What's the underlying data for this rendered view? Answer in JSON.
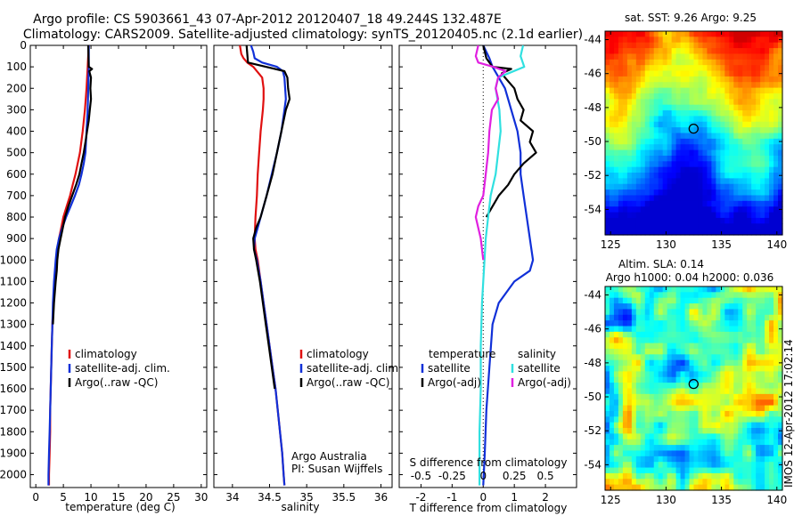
{
  "header": {
    "title_line1": "Argo profile: CS 5903661_43 07-Apr-2012 20120407_18 49.244S 132.487E",
    "title_line2": "Climatology: CARS2009. Satellite-adjusted climatology: synTS_20120405.nc (2.1d earlier)"
  },
  "colors": {
    "climatology": "#e01010",
    "satellite": "#1030d8",
    "argo": "#000000",
    "sat_salinity": "#30e0e0",
    "argo_salinity": "#e020e0"
  },
  "chart_data": [
    {
      "type": "line",
      "panel": "temperature",
      "xlabel": "temperature (deg C)",
      "ylabel": "",
      "xlim": [
        -1,
        31
      ],
      "ylim": [
        2060,
        0
      ],
      "xticks": [
        0,
        5,
        10,
        15,
        20,
        25,
        30
      ],
      "yticks": [
        0,
        100,
        200,
        300,
        400,
        500,
        600,
        700,
        800,
        900,
        1000,
        1100,
        1200,
        1300,
        1400,
        1500,
        1600,
        1700,
        1800,
        1900,
        2000
      ],
      "legend": [
        "climatology",
        "satellite-adj. clim.",
        "Argo(..raw -QC)"
      ],
      "legend_position": "lower-right",
      "series": [
        {
          "name": "climatology",
          "color": "#e01010",
          "depth": [
            0,
            100,
            200,
            300,
            400,
            500,
            550,
            600,
            650,
            700,
            750,
            800,
            850,
            900,
            950,
            1000,
            1100,
            1200,
            1300,
            1400,
            1500,
            1600,
            1700,
            1800,
            1900,
            2000,
            2050
          ],
          "values": [
            9.6,
            9.4,
            9.2,
            8.9,
            8.5,
            8.0,
            7.6,
            7.2,
            6.7,
            6.2,
            5.6,
            5.0,
            4.6,
            4.2,
            3.9,
            3.7,
            3.4,
            3.2,
            3.0,
            2.9,
            2.8,
            2.7,
            2.6,
            2.6,
            2.5,
            2.4,
            2.4
          ]
        },
        {
          "name": "satellite-adj. clim.",
          "color": "#1030d8",
          "depth": [
            0,
            100,
            200,
            300,
            400,
            500,
            550,
            600,
            650,
            700,
            750,
            800,
            850,
            900,
            950,
            1000,
            1100,
            1200,
            1300,
            1400,
            1500,
            1600,
            1700,
            1800,
            1900,
            2000,
            2050
          ],
          "values": [
            9.6,
            9.6,
            9.5,
            9.4,
            9.2,
            9.0,
            8.7,
            8.3,
            7.8,
            7.1,
            6.3,
            5.5,
            4.8,
            4.2,
            3.8,
            3.6,
            3.3,
            3.1,
            3.0,
            2.9,
            2.8,
            2.7,
            2.6,
            2.5,
            2.4,
            2.3,
            2.3
          ]
        },
        {
          "name": "Argo(..raw -QC)",
          "color": "#000000",
          "depth": [
            0,
            100,
            110,
            120,
            150,
            200,
            250,
            300,
            350,
            400,
            450,
            500,
            550,
            600,
            650,
            700,
            750,
            800,
            850,
            900,
            950,
            1000,
            1050,
            1100,
            1200,
            1300
          ],
          "values": [
            9.5,
            9.6,
            10.2,
            9.7,
            10.0,
            9.9,
            10.0,
            9.8,
            9.6,
            9.3,
            9.0,
            8.7,
            8.3,
            7.9,
            7.3,
            6.6,
            5.9,
            5.3,
            4.9,
            4.5,
            4.1,
            3.9,
            3.8,
            3.6,
            3.3,
            3.1
          ]
        }
      ]
    },
    {
      "type": "line",
      "panel": "salinity",
      "xlabel": "salinity",
      "ylabel": "",
      "xlim": [
        33.75,
        36.15
      ],
      "ylim": [
        2060,
        0
      ],
      "xticks": [
        34,
        34.5,
        35,
        35.5,
        36
      ],
      "legend": [
        "climatology",
        "satellite-adj. clim.",
        "Argo(..raw -QC)"
      ],
      "legend_position": "lower-right",
      "annotation": [
        "Argo Australia",
        "PI: Susan Wijffels"
      ],
      "series": [
        {
          "name": "climatology",
          "color": "#e01010",
          "depth": [
            0,
            40,
            60,
            80,
            100,
            150,
            200,
            250,
            300,
            400,
            500,
            600,
            700,
            800,
            900,
            950,
            1000,
            1100,
            1200,
            1300,
            1400,
            1500,
            1600,
            1700,
            1800,
            1900,
            2000,
            2050
          ],
          "values": [
            34.1,
            34.12,
            34.15,
            34.2,
            34.28,
            34.4,
            34.42,
            34.42,
            34.41,
            34.38,
            34.36,
            34.34,
            34.33,
            34.31,
            34.3,
            34.31,
            34.34,
            34.38,
            34.42,
            34.46,
            34.5,
            34.54,
            34.58,
            34.61,
            34.64,
            34.67,
            34.69,
            34.7
          ]
        },
        {
          "name": "satellite-adj. clim.",
          "color": "#1030d8",
          "depth": [
            0,
            30,
            60,
            80,
            100,
            120,
            150,
            200,
            250,
            300,
            400,
            500,
            600,
            700,
            800,
            850,
            900,
            950,
            1000,
            1100,
            1200,
            1300,
            1400,
            1500,
            1600,
            1700,
            1800,
            1900,
            2000,
            2050
          ],
          "values": [
            34.25,
            34.28,
            34.3,
            34.4,
            34.6,
            34.68,
            34.7,
            34.71,
            34.72,
            34.7,
            34.66,
            34.6,
            34.53,
            34.46,
            34.38,
            34.34,
            34.3,
            34.29,
            34.33,
            34.38,
            34.42,
            34.46,
            34.5,
            34.54,
            34.58,
            34.61,
            34.64,
            34.67,
            34.69,
            34.7
          ]
        },
        {
          "name": "Argo(..raw -QC)",
          "color": "#000000",
          "depth": [
            0,
            40,
            80,
            100,
            120,
            150,
            200,
            250,
            280,
            300,
            400,
            500,
            600,
            700,
            800,
            850,
            900,
            950,
            1000,
            1100,
            1200,
            1300,
            1400,
            1500,
            1600
          ],
          "values": [
            34.19,
            34.2,
            34.21,
            34.45,
            34.7,
            34.74,
            34.75,
            34.77,
            34.74,
            34.72,
            34.66,
            34.6,
            34.54,
            34.46,
            34.38,
            34.32,
            34.28,
            34.29,
            34.32,
            34.37,
            34.41,
            34.45,
            34.49,
            34.53,
            34.57
          ]
        }
      ]
    },
    {
      "type": "line",
      "panel": "difference",
      "xlabel": "T difference from climatology",
      "xlabel2": "S difference from climatology",
      "xlim": [
        -2.7,
        3.0
      ],
      "ylim": [
        2060,
        0
      ],
      "xticks": [
        -2,
        -1,
        0,
        1,
        2
      ],
      "xticks_S": [
        -0.5,
        -0.25,
        0,
        0.25,
        0.5
      ],
      "legend_T": {
        "heading": "temperature",
        "items": [
          "satellite",
          "Argo(-adj)"
        ]
      },
      "legend_S": {
        "heading": "salinity",
        "items": [
          "satellite",
          "Argo(-adj)"
        ]
      },
      "legend_position": "lower-center",
      "series": [
        {
          "name": "temperature satellite",
          "color": "#1030d8",
          "depth": [
            0,
            60,
            100,
            150,
            200,
            300,
            400,
            500,
            600,
            700,
            800,
            900,
            1000,
            1050,
            1100,
            1200,
            1300,
            1500,
            1700,
            1900,
            2050
          ],
          "values": [
            0.0,
            0.2,
            0.3,
            0.5,
            0.7,
            0.9,
            1.1,
            1.2,
            1.2,
            1.3,
            1.4,
            1.5,
            1.6,
            1.5,
            1.0,
            0.5,
            0.3,
            0.2,
            0.1,
            0.05,
            0.0
          ]
        },
        {
          "name": "temperature Argo(-adj)",
          "color": "#000000",
          "depth": [
            0,
            60,
            100,
            110,
            130,
            150,
            200,
            250,
            300,
            350,
            400,
            450,
            500,
            550,
            600,
            650,
            700,
            750,
            800
          ],
          "values": [
            0.0,
            0.1,
            0.3,
            0.9,
            0.6,
            0.7,
            1.0,
            1.1,
            1.3,
            1.2,
            1.6,
            1.5,
            1.7,
            1.3,
            1.0,
            0.8,
            0.5,
            0.3,
            0.1
          ]
        },
        {
          "name": "salinity satellite",
          "color": "#30e0e0",
          "depth": [
            0,
            50,
            100,
            150,
            200,
            300,
            400,
            500,
            600,
            700,
            800,
            900,
            1000,
            1100,
            1200,
            1400,
            1600,
            1800,
            2000,
            2050
          ],
          "values": [
            0.32,
            0.3,
            0.33,
            0.12,
            0.1,
            0.13,
            0.14,
            0.12,
            0.1,
            0.06,
            0.04,
            0.02,
            0.01,
            0.0,
            -0.01,
            -0.02,
            -0.02,
            -0.03,
            -0.03,
            -0.03
          ]
        },
        {
          "name": "salinity Argo(-adj)",
          "color": "#e020e0",
          "depth": [
            0,
            50,
            80,
            100,
            120,
            150,
            200,
            250,
            300,
            400,
            500,
            600,
            700,
            750,
            800,
            850,
            900,
            950,
            1000
          ],
          "values": [
            -0.04,
            -0.06,
            -0.04,
            0.08,
            0.18,
            0.12,
            0.1,
            0.12,
            0.07,
            0.05,
            0.04,
            0.02,
            0.0,
            -0.04,
            -0.06,
            -0.04,
            -0.02,
            -0.01,
            0.0
          ]
        }
      ]
    },
    {
      "type": "heatmap",
      "panel": "sst-map",
      "title": "sat. SST: 9.26  Argo: 9.25",
      "xlim": [
        124.5,
        140.5
      ],
      "ylim": [
        -55.5,
        -43.5
      ],
      "xticks": [
        125,
        130,
        135,
        140
      ],
      "yticks": [
        -44,
        -46,
        -48,
        -50,
        -52,
        -54
      ],
      "marker": {
        "lon": 132.487,
        "lat": -49.244
      }
    },
    {
      "type": "heatmap",
      "panel": "sla-map",
      "title_line1": "Altim. SLA: 0.14",
      "title_line2": "Argo h1000: 0.04 h2000: 0.036",
      "xlim": [
        124.5,
        140.5
      ],
      "ylim": [
        -55.5,
        -43.5
      ],
      "xticks": [
        125,
        130,
        135,
        140
      ],
      "yticks": [
        -44,
        -46,
        -48,
        -50,
        -52,
        -54
      ],
      "marker": {
        "lon": 132.487,
        "lat": -49.244
      }
    }
  ],
  "footer": {
    "side_stamp": "IMOS 12-Apr-2012 17:02:14"
  }
}
